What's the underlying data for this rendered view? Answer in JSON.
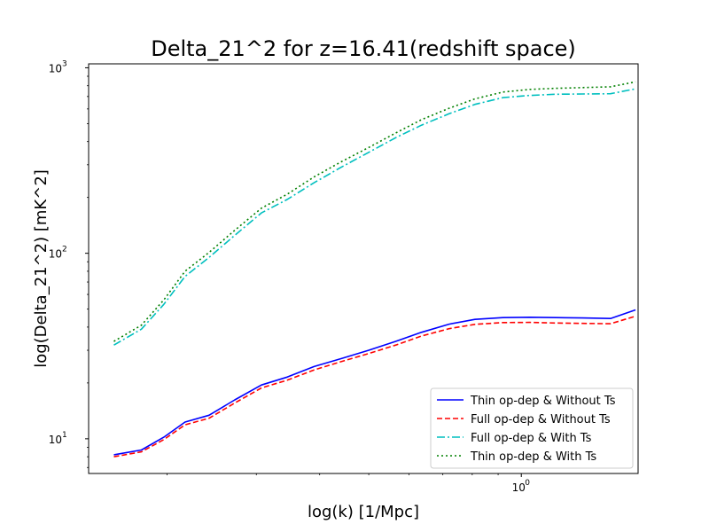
{
  "chart_data": {
    "type": "line",
    "title": "Delta_21^2 for z=16.41(redshift space)",
    "xlabel": "log(k) [1/Mpc]",
    "ylabel": "log(Delta_21^2) [mK^2]",
    "xscale": "log",
    "yscale": "log",
    "xlim": [
      0.14,
      1.7
    ],
    "ylim": [
      6.5,
      1050
    ],
    "x_ticks": [
      {
        "value": 1,
        "label": "10",
        "exp": "0"
      }
    ],
    "y_ticks": [
      {
        "value": 10,
        "label": "10",
        "exp": "1"
      },
      {
        "value": 100,
        "label": "10",
        "exp": "2"
      },
      {
        "value": 1000,
        "label": "10",
        "exp": "3"
      }
    ],
    "grid": false,
    "legend_position": "lower-right",
    "x": [
      0.157,
      0.178,
      0.197,
      0.217,
      0.242,
      0.272,
      0.307,
      0.345,
      0.39,
      0.44,
      0.5,
      0.565,
      0.635,
      0.72,
      0.81,
      0.92,
      1.04,
      1.17,
      1.32,
      1.5,
      1.68
    ],
    "series": [
      {
        "name": "Thin op-dep & Without Ts",
        "color": "#0000ff",
        "dash": "solid",
        "values": [
          8.2,
          8.7,
          10.2,
          12.3,
          13.4,
          16.2,
          19.5,
          21.5,
          24.5,
          27.0,
          30.0,
          33.5,
          37.5,
          41.5,
          44.0,
          45.0,
          45.2,
          45.0,
          44.8,
          44.5,
          49.5
        ]
      },
      {
        "name": "Full op-dep & Without Ts",
        "color": "#ff0000",
        "dash": "dashed",
        "values": [
          8.0,
          8.5,
          9.9,
          11.9,
          12.9,
          15.6,
          18.8,
          20.7,
          23.5,
          26.0,
          28.8,
          32.0,
          35.8,
          39.2,
          41.4,
          42.3,
          42.4,
          42.1,
          41.9,
          41.7,
          45.8
        ]
      },
      {
        "name": "Full op-dep & With Ts",
        "color": "#00bfbf",
        "dash": "dashdot",
        "values": [
          32.0,
          39.0,
          53.0,
          75.0,
          95.0,
          125.0,
          165.0,
          195.0,
          240.0,
          290.0,
          350.0,
          420.0,
          490.0,
          565.0,
          635.0,
          690.0,
          710.0,
          720.0,
          722.0,
          725.0,
          770.0
        ]
      },
      {
        "name": "Thin op-dep & With Ts",
        "color": "#008000",
        "dash": "dotted",
        "values": [
          33.5,
          41.0,
          56.0,
          80.0,
          101.0,
          133.0,
          175.0,
          208.0,
          258.0,
          310.0,
          372.0,
          445.0,
          525.0,
          605.0,
          680.0,
          740.0,
          765.0,
          775.0,
          782.0,
          790.0,
          840.0
        ]
      }
    ]
  }
}
